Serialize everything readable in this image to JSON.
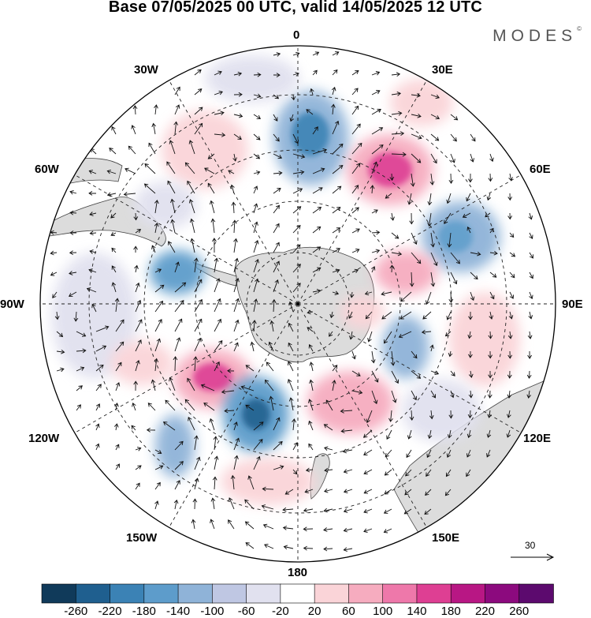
{
  "header": {
    "title": "Base 07/05/2025 00 UTC, valid 14/05/2025 12 UTC",
    "brand": "MODES",
    "brand_mark": "©"
  },
  "map": {
    "projection": "south-polar-stereographic",
    "longitude_labels": {
      "lon_0": "0",
      "lon_30e": "30E",
      "lon_60e": "60E",
      "lon_90e": "90E",
      "lon_120e": "120E",
      "lon_150e": "150E",
      "lon_180": "180",
      "lon_150w": "150W",
      "lon_120w": "120W",
      "lon_90w": "90W",
      "lon_60w": "60W",
      "lon_30w": "30W"
    },
    "anomalies": [
      {
        "region": "south of Africa near 10E",
        "value": -200
      },
      {
        "region": "south of Africa near 40E",
        "value": 180
      },
      {
        "region": "near 65E",
        "value": -140
      },
      {
        "region": "near 80E",
        "value": 120
      },
      {
        "region": "near 110W",
        "value": 200
      },
      {
        "region": "near 140W",
        "value": -220
      },
      {
        "region": "near 160E",
        "value": 140
      },
      {
        "region": "Drake Passage",
        "value": -140
      }
    ],
    "wind_reference": {
      "label": "30"
    }
  },
  "colorbar": {
    "labels": [
      "-260",
      "-220",
      "-180",
      "-140",
      "-100",
      "-60",
      "-20",
      "20",
      "60",
      "100",
      "140",
      "180",
      "220",
      "260"
    ],
    "colors": [
      "#103a5a",
      "#1f5f8f",
      "#3b82b5",
      "#5d9ccb",
      "#8fb3d8",
      "#bfc7e3",
      "#e1e1ef",
      "#ffffff",
      "#fad4d8",
      "#f6acbf",
      "#ee78aa",
      "#de3f93",
      "#b81784",
      "#8c0a7e",
      "#5c0a6e"
    ]
  }
}
